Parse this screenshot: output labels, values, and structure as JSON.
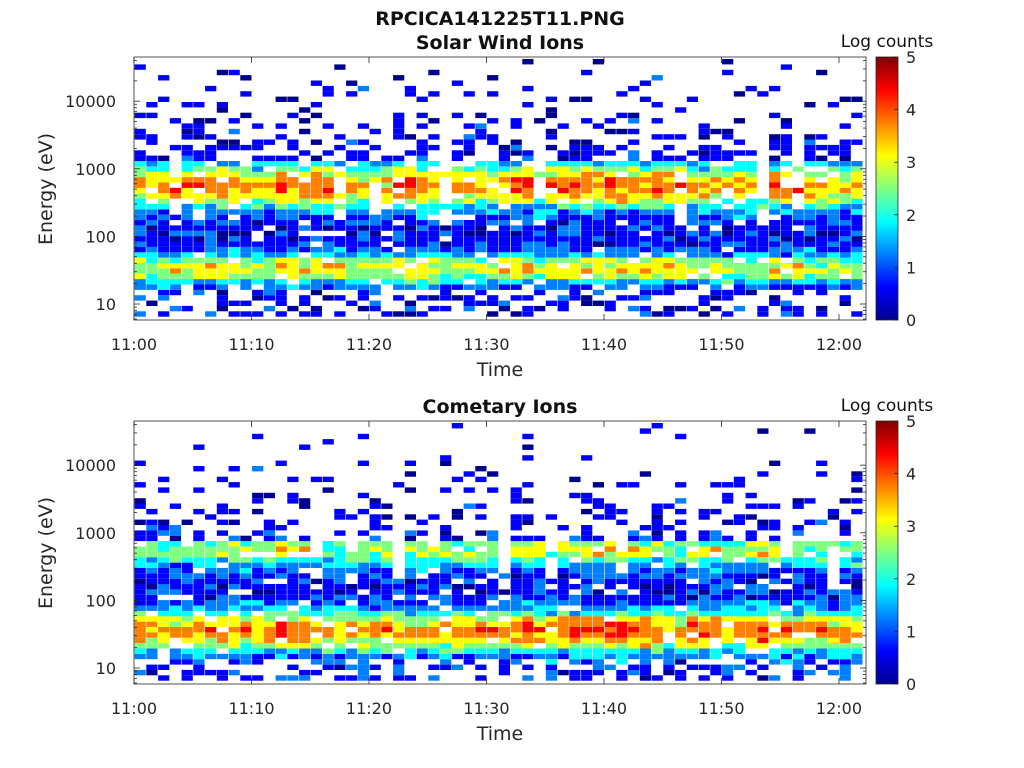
{
  "figure_title": "RPCICA141225T11.PNG",
  "colormap": [
    "#00008f",
    "#0000ff",
    "#0080ff",
    "#00ffff",
    "#80ff80",
    "#ffff00",
    "#ff8000",
    "#ff0000",
    "#800000"
  ],
  "chart_data": [
    {
      "type": "heatmap",
      "title": "Solar Wind Ions",
      "xlabel": "Time",
      "ylabel": "Energy (eV)",
      "x_ticks": [
        "11:00",
        "11:10",
        "11:20",
        "11:30",
        "11:40",
        "11:50",
        "12:00"
      ],
      "x_tick_minutes": [
        0,
        10,
        20,
        30,
        40,
        50,
        60
      ],
      "xlim_minutes": [
        0,
        62.3
      ],
      "y_scale": "log",
      "ylim": [
        5.8,
        45000
      ],
      "y_ticks": [
        10,
        100,
        1000,
        10000
      ],
      "y_tick_labels": [
        "10",
        "100",
        "1000",
        "10000"
      ],
      "colorbar": {
        "label": "Log counts",
        "range": [
          0,
          5
        ],
        "ticks": [
          "0",
          "1",
          "2",
          "3",
          "4",
          "5"
        ]
      },
      "profile": {
        "peaks": [
          {
            "energy": 550,
            "level": 2.8,
            "width": 0.33
          },
          {
            "energy": 33,
            "level": 2.3,
            "width": 0.22
          }
        ],
        "base_level": 0.9,
        "low_cut": 15,
        "high_decay": 1400,
        "bright_minutes": [
          4,
          7,
          13,
          16,
          23,
          32,
          36,
          39,
          42,
          45,
          55
        ]
      }
    },
    {
      "type": "heatmap",
      "title": "Cometary Ions",
      "xlabel": "Time",
      "ylabel": "Energy (eV)",
      "x_ticks": [
        "11:00",
        "11:10",
        "11:20",
        "11:30",
        "11:40",
        "11:50",
        "12:00"
      ],
      "x_tick_minutes": [
        0,
        10,
        20,
        30,
        40,
        50,
        60
      ],
      "xlim_minutes": [
        0,
        62.3
      ],
      "y_scale": "log",
      "ylim": [
        5.8,
        45000
      ],
      "y_ticks": [
        10,
        100,
        1000,
        10000
      ],
      "y_tick_labels": [
        "10",
        "100",
        "1000",
        "10000"
      ],
      "colorbar": {
        "label": "Log counts",
        "range": [
          0,
          5
        ],
        "ticks": [
          "0",
          "1",
          "2",
          "3",
          "4",
          "5"
        ]
      },
      "profile": {
        "peaks": [
          {
            "energy": 35,
            "level": 3.0,
            "width": 0.3
          },
          {
            "energy": 550,
            "level": 1.9,
            "width": 0.25
          }
        ],
        "base_level": 1.0,
        "low_cut": 13,
        "high_decay": 700,
        "bright_minutes": [
          13,
          33,
          37,
          39,
          42,
          48,
          53
        ]
      }
    }
  ]
}
